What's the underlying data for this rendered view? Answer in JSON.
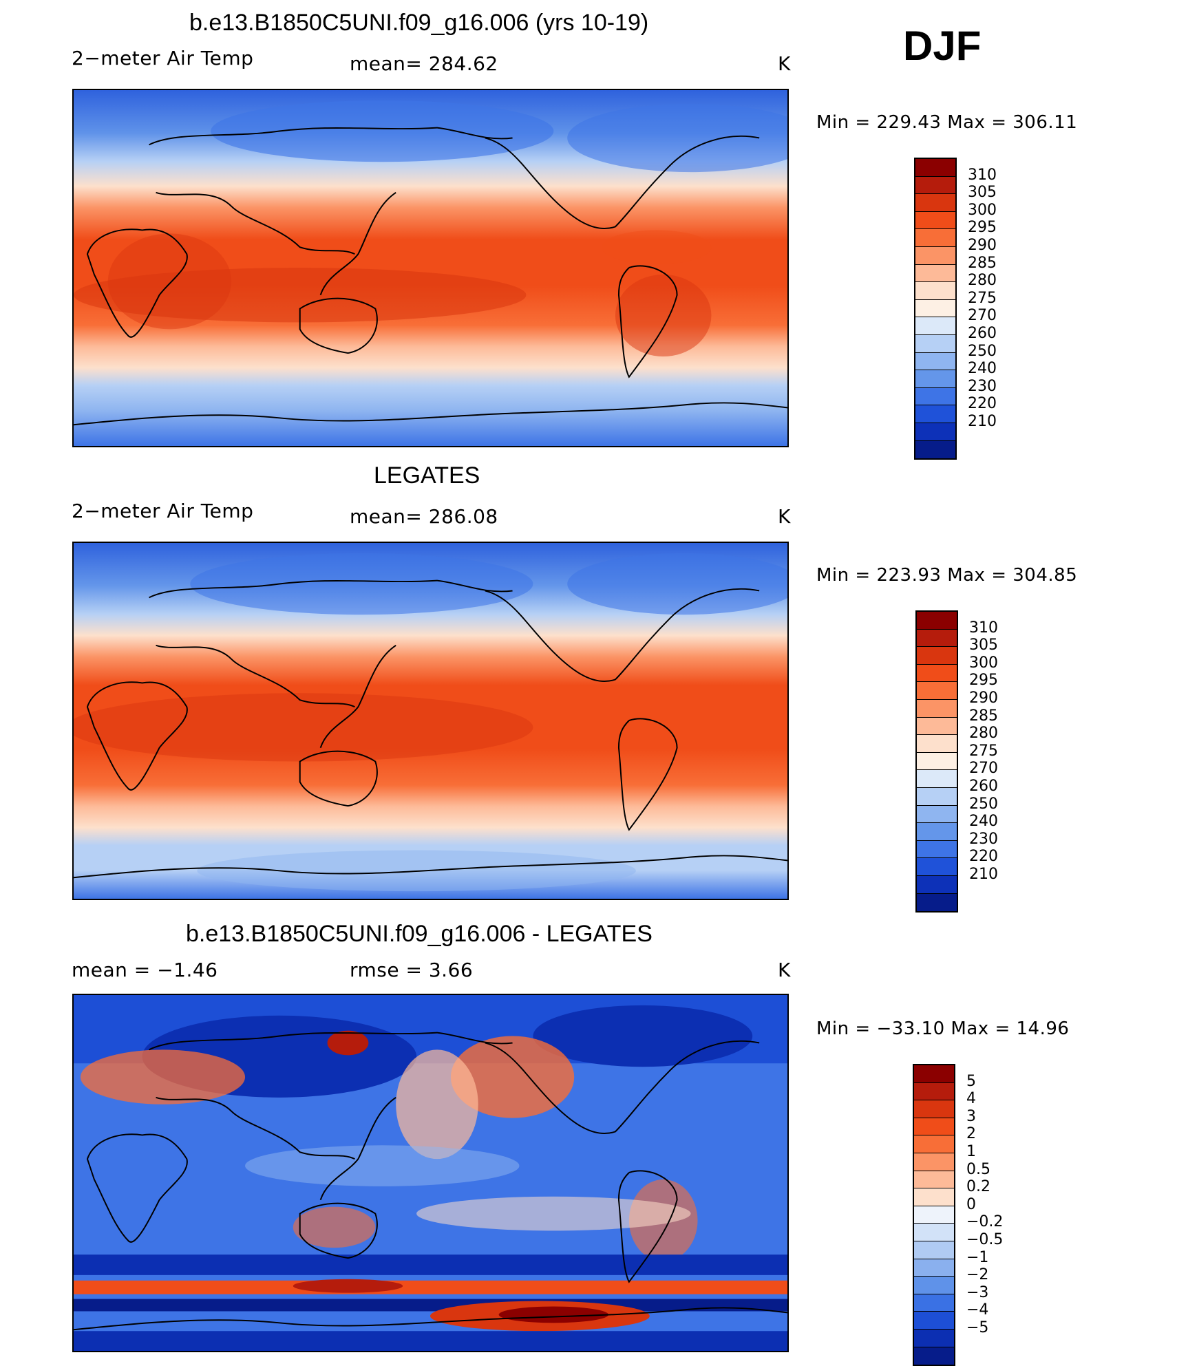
{
  "season": "DJF",
  "panels": [
    {
      "title": "b.e13.B1850C5UNI.f09_g16.006 (yrs 10-19)",
      "left_label": "2−meter Air Temp",
      "center_label": "mean= 284.62",
      "units": "K",
      "minmax": "Min = 229.43 Max = 306.11",
      "scale": "abs"
    },
    {
      "title": "LEGATES",
      "left_label": "2−meter Air Temp",
      "center_label": "mean= 286.08",
      "units": "K",
      "minmax": "Min = 223.93 Max = 304.85",
      "scale": "abs"
    },
    {
      "title": "b.e13.B1850C5UNI.f09_g16.006 - LEGATES",
      "left_label": "mean = −1.46",
      "center_label": "rmse = 3.66",
      "units": "K",
      "minmax": "Min = −33.10 Max = 14.96",
      "scale": "diff"
    }
  ],
  "colorbars": {
    "abs": {
      "labels": [
        "310",
        "305",
        "300",
        "295",
        "290",
        "285",
        "280",
        "275",
        "270",
        "260",
        "250",
        "240",
        "230",
        "220",
        "210"
      ],
      "colors": [
        "#8b0000",
        "#b51c0c",
        "#d9360f",
        "#f04d19",
        "#f86e37",
        "#fb9466",
        "#fdba98",
        "#fde0cc",
        "#fdf0e4",
        "#dce9f9",
        "#b6d0f5",
        "#8fb5f0",
        "#6496ea",
        "#3e74e6",
        "#1f52d9",
        "#0d31b8",
        "#061c8a"
      ],
      "label_pos": [
        1,
        2,
        3,
        4,
        5,
        6,
        7,
        8,
        9,
        10,
        11,
        12,
        13,
        14,
        15
      ]
    },
    "diff": {
      "labels": [
        "5",
        "4",
        "3",
        "2",
        "1",
        "0.5",
        "0.2",
        "0",
        "−0.2",
        "−0.5",
        "−1",
        "−2",
        "−3",
        "−4",
        "−5"
      ],
      "colors": [
        "#8b0000",
        "#b51c0c",
        "#d9360f",
        "#f04d19",
        "#f86e37",
        "#fb9466",
        "#fdba98",
        "#fde0cc",
        "#eef3fb",
        "#d2e2f8",
        "#b0cbf3",
        "#8ab0ee",
        "#5f92e9",
        "#3a71e4",
        "#1d4fd6",
        "#0c2fb2",
        "#061c8a"
      ],
      "label_pos": [
        1,
        2,
        3,
        4,
        5,
        6,
        7,
        8,
        9,
        10,
        11,
        12,
        13,
        14,
        15
      ]
    }
  }
}
